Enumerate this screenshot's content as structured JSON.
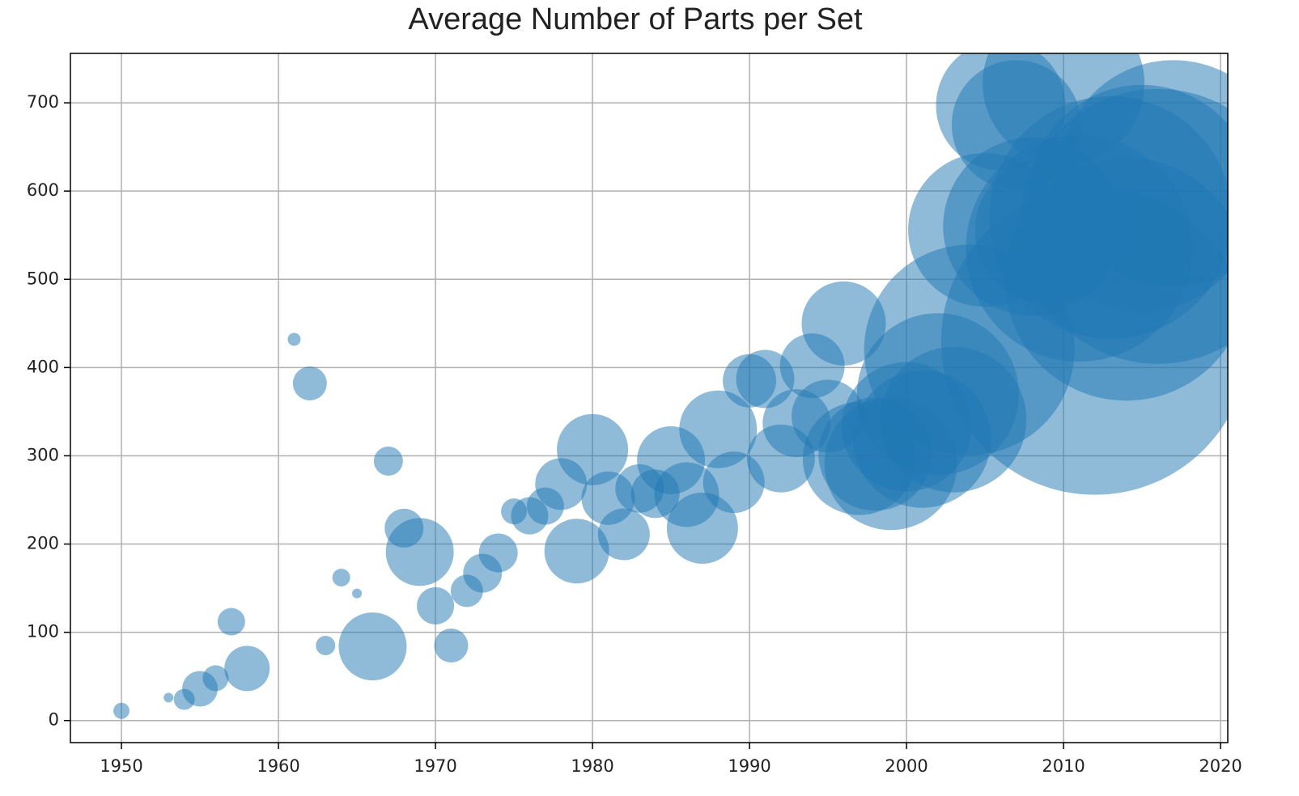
{
  "chart_data": {
    "type": "scatter",
    "title": "Average Number of Parts per Set",
    "x": [
      1950,
      1953,
      1954,
      1955,
      1956,
      1957,
      1958,
      1961,
      1962,
      1963,
      1964,
      1965,
      1966,
      1967,
      1968,
      1969,
      1970,
      1971,
      1972,
      1973,
      1974,
      1975,
      1976,
      1977,
      1978,
      1979,
      1980,
      1981,
      1982,
      1983,
      1984,
      1985,
      1986,
      1987,
      1988,
      1989,
      1990,
      1991,
      1992,
      1993,
      1994,
      1995,
      1996,
      1997,
      1998,
      1999,
      2000,
      2001,
      2002,
      2003,
      2004,
      2005,
      2006,
      2007,
      2008,
      2009,
      2010,
      2011,
      2012,
      2013,
      2014,
      2015,
      2016,
      2017
    ],
    "values": [
      11,
      26,
      24,
      36,
      48,
      112,
      59,
      432,
      382,
      85,
      162,
      144,
      84,
      294,
      218,
      191,
      130,
      85,
      147,
      167,
      190,
      237,
      232,
      243,
      268,
      192,
      307,
      252,
      211,
      263,
      257,
      295,
      256,
      218,
      330,
      270,
      385,
      387,
      297,
      337,
      402,
      345,
      450,
      297,
      302,
      291,
      333,
      319,
      370,
      341,
      420,
      556,
      697,
      675,
      560,
      555,
      722,
      535,
      430,
      570,
      500,
      592,
      560,
      620
    ],
    "sizes": [
      10,
      6,
      13,
      22,
      16,
      17,
      28,
      8,
      21,
      12,
      11,
      6,
      42,
      18,
      24,
      42,
      23,
      21,
      20,
      24,
      24,
      16,
      23,
      23,
      32,
      40,
      44,
      33,
      32,
      30,
      30,
      42,
      40,
      44,
      48,
      38,
      33,
      36,
      42,
      42,
      40,
      45,
      52,
      70,
      70,
      82,
      80,
      85,
      100,
      90,
      130,
      95,
      80,
      80,
      110,
      90,
      100,
      140,
      190,
      150,
      150,
      140,
      170,
      140
    ],
    "color": "#1f77b4",
    "xlim": [
      1946.75,
      2020.46
    ],
    "xticks": [
      1950,
      1960,
      1970,
      1980,
      1990,
      2000,
      2010,
      2020
    ],
    "ylim": [
      -25,
      756
    ],
    "yticks": [
      0,
      100,
      200,
      300,
      400,
      500,
      600,
      700
    ],
    "grid": true
  }
}
